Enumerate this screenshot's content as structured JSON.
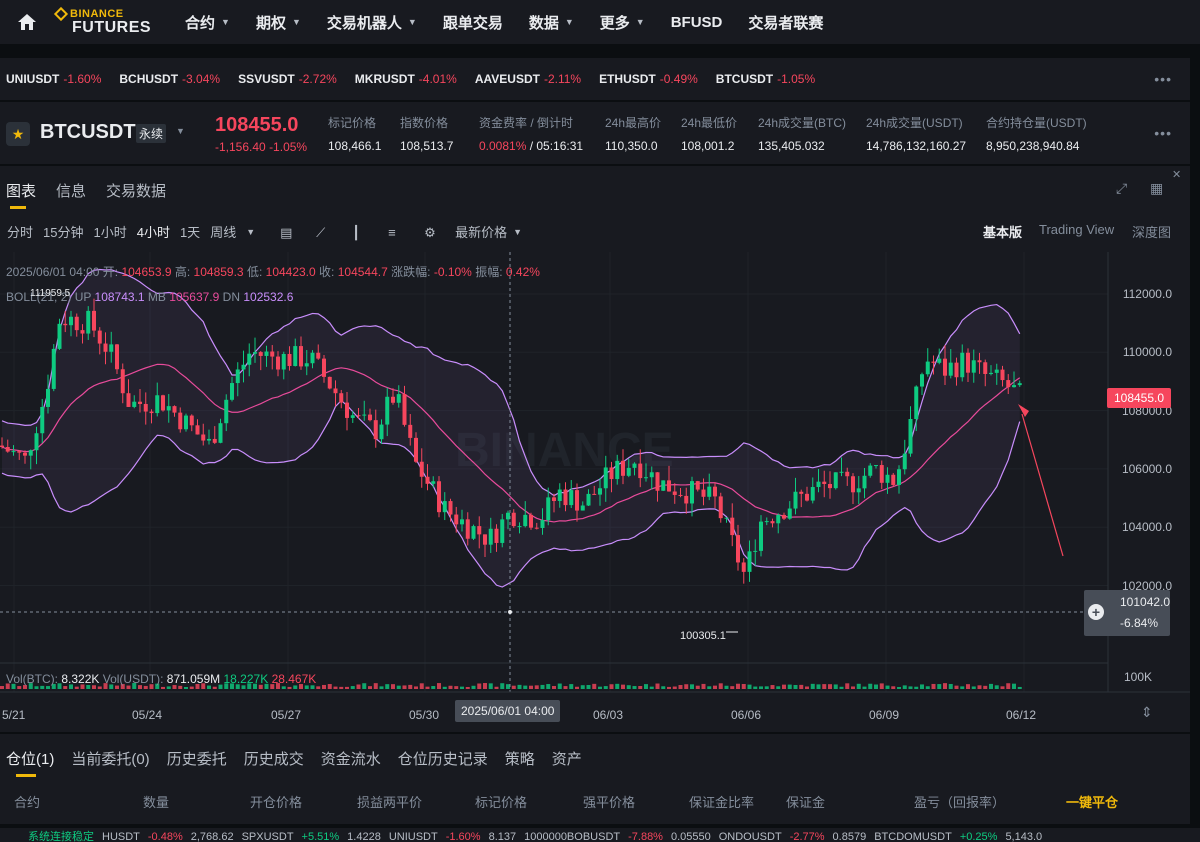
{
  "nav": {
    "logo_top": "BINANCE",
    "logo_bottom": "FUTURES",
    "items": [
      {
        "label": "合约",
        "dropdown": true
      },
      {
        "label": "期权",
        "dropdown": true
      },
      {
        "label": "交易机器人",
        "dropdown": true
      },
      {
        "label": "跟单交易",
        "dropdown": false
      },
      {
        "label": "数据",
        "dropdown": true
      },
      {
        "label": "更多",
        "dropdown": true
      },
      {
        "label": "BFUSD",
        "dropdown": false
      },
      {
        "label": "交易者联赛",
        "dropdown": false
      }
    ]
  },
  "ticker": [
    {
      "symbol": "UNIUSDT",
      "change": "-1.60%"
    },
    {
      "symbol": "BCHUSDT",
      "change": "-3.04%"
    },
    {
      "symbol": "SSVUSDT",
      "change": "-2.72%"
    },
    {
      "symbol": "MKRUSDT",
      "change": "-4.01%"
    },
    {
      "symbol": "AAVEUSDT",
      "change": "-2.11%"
    },
    {
      "symbol": "ETHUSDT",
      "change": "-0.49%"
    },
    {
      "symbol": "BTCUSDT",
      "change": "-1.05%"
    }
  ],
  "symbol": {
    "name": "BTCUSDT",
    "type": "永续",
    "price": "108455.0",
    "change_abs": "-1,156.40",
    "change_pct": "-1.05%",
    "stats": [
      {
        "label": "标记价格",
        "value": "108,466.1"
      },
      {
        "label": "指数价格",
        "value": "108,513.7"
      },
      {
        "label": "资金费率 / 倒计时",
        "value_red": "0.0081%",
        "value": " / 05:16:31"
      },
      {
        "label": "24h最高价",
        "value": "110,350.0"
      },
      {
        "label": "24h最低价",
        "value": "108,001.2"
      },
      {
        "label": "24h成交量(BTC)",
        "value": "135,405.032"
      },
      {
        "label": "24h成交量(USDT)",
        "value": "14,786,132,160.27"
      },
      {
        "label": "合约持仓量(USDT)",
        "value": "8,950,238,940.84"
      }
    ]
  },
  "chart_tabs": [
    "图表",
    "信息",
    "交易数据"
  ],
  "timeframes": [
    "分时",
    "15分钟",
    "1小时",
    "4小时",
    "1天",
    "周线"
  ],
  "price_type": "最新价格",
  "views": [
    "基本版",
    "Trading View",
    "深度图"
  ],
  "ohlc": {
    "date": "2025/06/01 04:00",
    "open_label": "开:",
    "open": "104653.9",
    "high_label": "高:",
    "high": "104859.3",
    "low_label": "低:",
    "low": "104423.0",
    "close_label": "收:",
    "close": "104544.7",
    "chg_label": "涨跌幅:",
    "chg": "-0.10%",
    "amp_label": "振幅:",
    "amp": "0.42%"
  },
  "boll": {
    "label": "BOLL(21, 2)",
    "up_label": "UP",
    "up": "108743.1",
    "mb_label": "MB",
    "mb": "105637.9",
    "dn_label": "DN",
    "dn": "102532.6"
  },
  "vol": {
    "btc_label": "Vol(BTC):",
    "btc": "8.322K",
    "usdt_label": "Vol(USDT):",
    "usdt": "871.059M",
    "v1": "18.227K",
    "v2": "28.467K"
  },
  "chart_data": {
    "type": "candlestick",
    "y_ticks": [
      "112000.0",
      "110000.0",
      "108000.0",
      "106000.0",
      "104000.0",
      "102000.0"
    ],
    "vol_tick": "100K",
    "x_ticks": [
      "5/21",
      "05/24",
      "05/27",
      "05/30",
      "06/03",
      "06/06",
      "06/09",
      "06/12"
    ],
    "crosshair_x": "2025/06/01 04:00",
    "crosshair_price": "101042.0",
    "crosshair_pct": "-6.84%",
    "last_price": "108455.0",
    "high_label": "111959.5",
    "low_label": "100305.1",
    "ylim": [
      101000,
      112400
    ]
  },
  "bottom_tabs": [
    "仓位(1)",
    "当前委托(0)",
    "历史委托",
    "历史成交",
    "资金流水",
    "仓位历史记录",
    "策略",
    "资产"
  ],
  "position_columns": [
    "合约",
    "数量",
    "开仓价格",
    "损益两平价",
    "标记价格",
    "强平价格",
    "保证金比率",
    "保证金",
    "盈亏（回报率）"
  ],
  "close_all": "一键平仓",
  "statusbar": {
    "conn": "系统连接稳定",
    "items": [
      {
        "sym": "HUSDT",
        "chg": "-0.48%",
        "px": "2,768.62",
        "up": false
      },
      {
        "sym": "SPXUSDT",
        "chg": "+5.51%",
        "px": "1.4228",
        "up": true
      },
      {
        "sym": "UNIUSDT",
        "chg": "-1.60%",
        "px": "8.137",
        "up": false
      },
      {
        "sym": "1000000BOBUSDT",
        "chg": "-7.88%",
        "px": "0.05550",
        "up": false
      },
      {
        "sym": "ONDOUSDT",
        "chg": "-2.77%",
        "px": "0.8579",
        "up": false
      },
      {
        "sym": "BTCDOMUSDT",
        "chg": "+0.25%",
        "px": "5,143.0",
        "up": true
      }
    ]
  },
  "colors": {
    "up": "#0ecb81",
    "down": "#f6465d",
    "accent": "#f0b90b",
    "boll_band": "#c98efc",
    "boll_mid": "#e84b9b"
  }
}
